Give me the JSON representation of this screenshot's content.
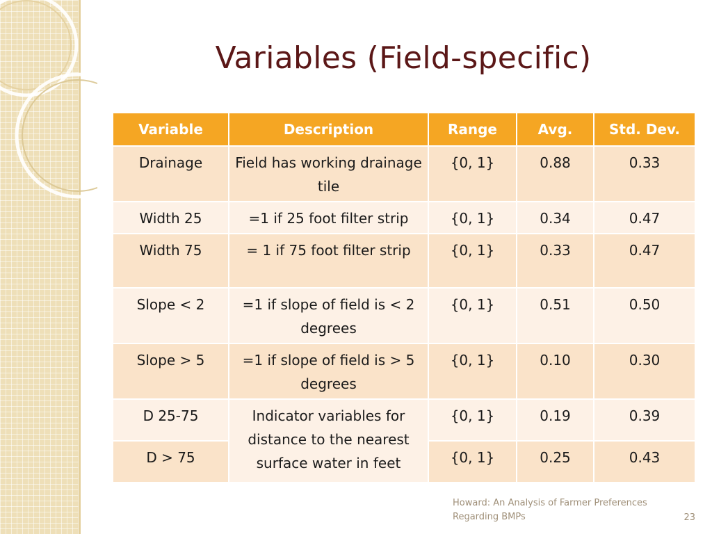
{
  "slide": {
    "title": "Variables (Field-specific)",
    "footer_text": "Howard: An Analysis of Farmer Preferences Regarding BMPs",
    "page_number": "23"
  },
  "table": {
    "headers": [
      "Variable",
      "Description",
      "Range",
      "Avg.",
      "Std. Dev."
    ],
    "rows": [
      {
        "variable": "Drainage",
        "description": "Field has working drainage tile",
        "range": "{0, 1}",
        "avg": "0.88",
        "std": "0.33"
      },
      {
        "variable": "Width 25",
        "description": "=1 if 25 foot filter strip",
        "range": "{0, 1}",
        "avg": "0.34",
        "std": "0.47"
      },
      {
        "variable": "Width 75",
        "description": "= 1 if 75 foot filter strip",
        "range": "{0, 1}",
        "avg": "0.33",
        "std": "0.47"
      },
      {
        "variable": "Slope < 2",
        "description": "=1 if slope of field is < 2 degrees",
        "range": "{0, 1}",
        "avg": "0.51",
        "std": "0.50"
      },
      {
        "variable": "Slope > 5",
        "description": "=1 if slope of field is > 5 degrees",
        "range": "{0, 1}",
        "avg": "0.10",
        "std": "0.30"
      },
      {
        "variable": "D 25-75",
        "description": "Indicator variables for distance to the nearest surface water in feet",
        "range": "{0, 1}",
        "avg": "0.19",
        "std": "0.39"
      },
      {
        "variable": "D > 75",
        "range": "{0, 1}",
        "avg": "0.25",
        "std": "0.43"
      }
    ]
  },
  "colors": {
    "header_bg": "#f5a623",
    "row_odd": "#fae3c9",
    "row_even": "#fdf1e6",
    "title": "#5b1717"
  }
}
